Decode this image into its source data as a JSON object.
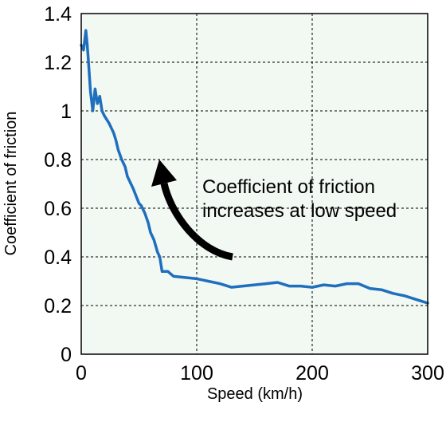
{
  "chart_data": {
    "type": "line",
    "title": "",
    "xlabel": "Speed (km/h)",
    "ylabel": "Coefficient of friction",
    "xlim": [
      0,
      300
    ],
    "ylim": [
      0,
      1.4
    ],
    "x_ticks": [
      "0",
      "100",
      "200",
      "300"
    ],
    "y_ticks": [
      "0",
      "0.2",
      "0.4",
      "0.6",
      "0.8",
      "1",
      "1.2",
      "1.4"
    ],
    "grid": true,
    "legend": "none",
    "series": [
      {
        "color": "#1f6fbf",
        "x": [
          0,
          2,
          4,
          5,
          6,
          8,
          10,
          12,
          14,
          16,
          18,
          20,
          24,
          28,
          30,
          32,
          35,
          38,
          40,
          45,
          50,
          52,
          55,
          58,
          60,
          63,
          66,
          68,
          70,
          75,
          80,
          90,
          100,
          110,
          120,
          130,
          140,
          150,
          160,
          170,
          180,
          190,
          200,
          210,
          220,
          230,
          240,
          250,
          260,
          270,
          280,
          290,
          300
        ],
        "y": [
          1.27,
          1.25,
          1.33,
          1.28,
          1.22,
          1.08,
          1.0,
          1.09,
          1.03,
          1.06,
          1.0,
          0.98,
          0.95,
          0.91,
          0.88,
          0.84,
          0.8,
          0.77,
          0.73,
          0.68,
          0.62,
          0.61,
          0.58,
          0.54,
          0.5,
          0.47,
          0.42,
          0.4,
          0.34,
          0.34,
          0.32,
          0.315,
          0.31,
          0.3,
          0.29,
          0.275,
          0.28,
          0.285,
          0.29,
          0.295,
          0.28,
          0.28,
          0.275,
          0.285,
          0.28,
          0.29,
          0.29,
          0.27,
          0.265,
          0.25,
          0.24,
          0.225,
          0.21
        ]
      }
    ],
    "annotation": {
      "line1": "Coefficient of friction",
      "line2": "increases at low speed"
    },
    "colors": {
      "plot_background": "#f2f8f2",
      "line": "#1f6fbf",
      "grid": "#000000",
      "arrow": "#000000"
    }
  }
}
